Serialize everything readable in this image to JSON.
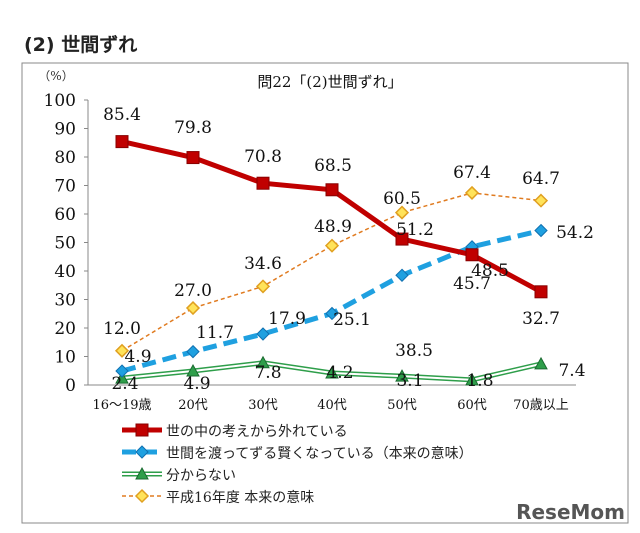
{
  "heading": "(2) 世間ずれ",
  "chart_data": {
    "type": "line",
    "title": "問22「(2)世間ずれ」",
    "ylabel": "（%）",
    "ylim": [
      0,
      100
    ],
    "yticks": [
      0,
      10,
      20,
      30,
      40,
      50,
      60,
      70,
      80,
      90,
      100
    ],
    "categories": [
      "16～19歳",
      "20代",
      "30代",
      "40代",
      "50代",
      "60代",
      "70歳以上"
    ],
    "grid": false,
    "legend_position": "bottom",
    "series": [
      {
        "name": "世の中の考えから外れている",
        "values": [
          85.4,
          79.8,
          70.8,
          68.5,
          51.2,
          45.7,
          32.7
        ],
        "labels": [
          "85.4",
          "79.8",
          "70.8",
          "68.5",
          "51.2",
          "45.7",
          "32.7"
        ],
        "color": "#c00000",
        "marker": "square",
        "style": "solid"
      },
      {
        "name": "世間を渡ってずる賢くなっている（本来の意味）",
        "values": [
          4.9,
          11.7,
          17.9,
          25.1,
          38.5,
          48.5,
          54.2
        ],
        "labels": [
          "4.9",
          "11.7",
          "17.9",
          "25.1",
          "38.5",
          "48.5",
          "54.2"
        ],
        "color": "#1fa0e0",
        "marker": "diamond",
        "style": "dashed"
      },
      {
        "name": "分からない",
        "values": [
          2.4,
          4.9,
          7.8,
          4.2,
          3.1,
          1.8,
          7.4
        ],
        "labels": [
          "2.4",
          "4.9",
          "7.8",
          "4.2",
          "3.1",
          "1.8",
          "7.4"
        ],
        "color": "#2e9e4a",
        "marker": "triangle",
        "style": "double"
      },
      {
        "name": "平成16年度 本来の意味",
        "values": [
          12.0,
          27.0,
          34.6,
          48.9,
          60.5,
          67.4,
          64.7
        ],
        "labels": [
          "12.0",
          "27.0",
          "34.6",
          "48.9",
          "60.5",
          "67.4",
          "64.7"
        ],
        "color": "#e07b20",
        "marker": "diamond-open",
        "style": "dotted"
      }
    ]
  },
  "watermark": "ReseMom"
}
